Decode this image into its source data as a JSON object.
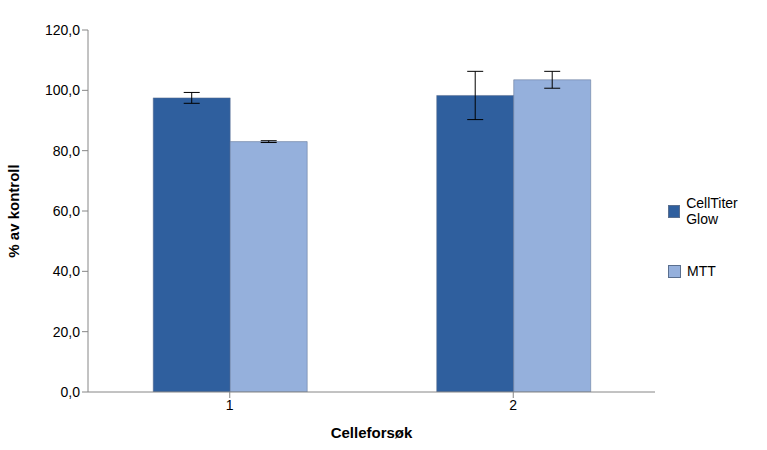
{
  "chart_data": {
    "type": "bar",
    "x_label": "Celleforsøk",
    "y_label": "% av kontroll",
    "categories": [
      "1",
      "2"
    ],
    "series": [
      {
        "name": "CellTiter Glow",
        "color": "#2f5f9e",
        "values": [
          97.5,
          98.3
        ],
        "errors": [
          1.8,
          8.0
        ]
      },
      {
        "name": "MTT",
        "color": "#95b0dc",
        "values": [
          83.0,
          103.5
        ],
        "errors": [
          0.3,
          2.8
        ]
      }
    ],
    "ylim": [
      0,
      120
    ],
    "yticks": [
      {
        "value": 0,
        "label": "0,0"
      },
      {
        "value": 20,
        "label": "20,0"
      },
      {
        "value": 40,
        "label": "40,0"
      },
      {
        "value": 60,
        "label": "60,0"
      },
      {
        "value": 80,
        "label": "80,0"
      },
      {
        "value": 100,
        "label": "100,0"
      },
      {
        "value": 120,
        "label": "120,0"
      }
    ],
    "grid": false,
    "legend": "right"
  }
}
